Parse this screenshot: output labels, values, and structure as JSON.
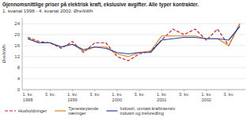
{
  "chart_data": {
    "type": "line",
    "title": "Gjennomsnittlige priser på elektrisk kraft, ekslusive avgifter. Alle typer kontrakter.",
    "subtitle": "1. kvartal 1998 - 4. kvartal 2002. Øre/kWh",
    "y_label": "Øre/kWh",
    "categories": [
      "1. kv.\n1998",
      null,
      "3. kv.",
      null,
      "1. kv.\n1999",
      null,
      "3. kv.",
      null,
      "1. kv.\n2000",
      null,
      "3. kv.",
      null,
      "1. kv.\n2001",
      null,
      "3. kv.",
      null,
      "1. kv.\n2002",
      null,
      "3. kv.",
      null
    ],
    "series": [
      {
        "name": "Husholdninger",
        "color": "#cc2222",
        "line_style": "dashed",
        "values": [
          19.0,
          17.5,
          17.0,
          15.0,
          17.5,
          13.5,
          17.0,
          17.0,
          12.0,
          10.5,
          13.0,
          14.0,
          18.0,
          22.0,
          20.0,
          22.0,
          18.0,
          22.0,
          16.0,
          24.0
        ]
      },
      {
        "name": "Tjenesteytende\nnæringer",
        "color": "#e08020",
        "line_style": "solid",
        "values": [
          18.5,
          17.0,
          17.0,
          15.5,
          16.5,
          14.0,
          15.5,
          15.5,
          13.0,
          12.0,
          13.5,
          14.0,
          19.5,
          19.5,
          19.5,
          19.5,
          18.5,
          18.5,
          16.0,
          24.0
        ]
      },
      {
        "name": "Industri, unntatt kraftintensiv\nindustri og treforedling",
        "color": "#2244aa",
        "line_style": "solid",
        "values": [
          18.5,
          17.0,
          17.0,
          15.5,
          16.5,
          14.5,
          15.5,
          15.0,
          13.5,
          13.0,
          13.5,
          13.5,
          18.0,
          18.5,
          19.0,
          19.0,
          18.5,
          18.5,
          18.0,
          23.0
        ]
      }
    ],
    "ylim": [
      0,
      26
    ],
    "yticks": [
      0,
      4,
      8,
      12,
      16,
      20,
      24
    ],
    "grid": true,
    "legend": "bottom"
  }
}
